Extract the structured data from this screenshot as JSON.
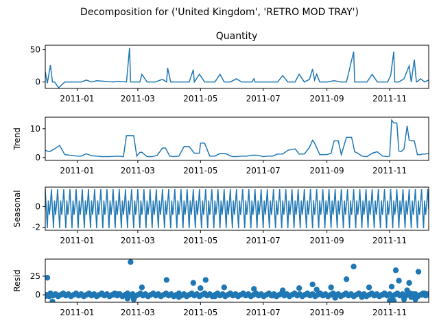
{
  "figure": {
    "suptitle": "Decomposition for ('United Kingdom', 'RETRO MOD TRAY')"
  },
  "chart_data": [
    {
      "type": "line",
      "id": "observed",
      "title": "Quantity",
      "ylabel": "",
      "color": "#1f77b4",
      "xlim": [
        "2011-11-28",
        "2011-12-09"
      ],
      "xlim_full": [
        "2010-12-01",
        "2011-12-09"
      ],
      "ylim": [
        -10,
        57
      ],
      "yticks": [
        0,
        50
      ],
      "xticks": [
        "2011-01",
        "2011-03",
        "2011-05",
        "2011-07",
        "2011-09",
        "2011-11"
      ],
      "x": [
        "2010-12-01",
        "2010-12-03",
        "2010-12-06",
        "2010-12-08",
        "2010-12-10",
        "2010-12-14",
        "2010-12-20",
        "2011-01-05",
        "2011-01-10",
        "2011-01-15",
        "2011-01-20",
        "2011-02-05",
        "2011-02-10",
        "2011-02-18",
        "2011-02-21",
        "2011-02-22",
        "2011-02-25",
        "2011-03-03",
        "2011-03-05",
        "2011-03-10",
        "2011-03-18",
        "2011-03-25",
        "2011-03-29",
        "2011-03-30",
        "2011-04-02",
        "2011-04-10",
        "2011-04-20",
        "2011-04-24",
        "2011-04-25",
        "2011-04-30",
        "2011-05-05",
        "2011-05-10",
        "2011-05-15",
        "2011-05-20",
        "2011-05-24",
        "2011-05-25",
        "2011-05-30",
        "2011-06-05",
        "2011-06-10",
        "2011-06-20",
        "2011-06-22",
        "2011-06-23",
        "2011-06-28",
        "2011-07-05",
        "2011-07-15",
        "2011-07-20",
        "2011-07-25",
        "2011-08-01",
        "2011-08-05",
        "2011-08-10",
        "2011-08-15",
        "2011-08-18",
        "2011-08-20",
        "2011-08-22",
        "2011-08-25",
        "2011-09-01",
        "2011-09-08",
        "2011-09-15",
        "2011-09-20",
        "2011-09-27",
        "2011-09-28",
        "2011-10-05",
        "2011-10-10",
        "2011-10-15",
        "2011-10-20",
        "2011-10-25",
        "2011-10-30",
        "2011-11-02",
        "2011-11-05",
        "2011-11-06",
        "2011-11-10",
        "2011-11-15",
        "2011-11-20",
        "2011-11-22",
        "2011-11-25",
        "2011-11-27",
        "2011-11-29",
        "2011-12-01",
        "2011-12-05",
        "2011-12-09"
      ],
      "y": [
        16,
        -2,
        26,
        0,
        0,
        -9,
        0,
        0,
        3,
        0,
        2,
        0,
        1,
        0,
        53,
        0,
        0,
        0,
        12,
        0,
        0,
        4,
        0,
        22,
        0,
        0,
        0,
        19,
        0,
        12,
        0,
        0,
        0,
        12,
        0,
        0,
        0,
        5,
        0,
        0,
        5,
        0,
        0,
        0,
        0,
        10,
        0,
        0,
        12,
        0,
        4,
        20,
        3,
        12,
        0,
        0,
        2,
        0,
        0,
        47,
        0,
        0,
        0,
        12,
        0,
        0,
        0,
        10,
        47,
        0,
        0,
        5,
        25,
        0,
        35,
        0,
        2,
        5,
        0,
        3
      ]
    },
    {
      "type": "line",
      "id": "trend",
      "title": "",
      "ylabel": "Trend",
      "color": "#1f77b4",
      "ylim": [
        -1,
        14
      ],
      "yticks": [
        0,
        10
      ],
      "xticks": [
        "2011-01",
        "2011-03",
        "2011-05",
        "2011-07",
        "2011-09",
        "2011-11"
      ],
      "x": [
        "2010-12-01",
        "2010-12-05",
        "2010-12-10",
        "2010-12-15",
        "2010-12-20",
        "2010-12-25",
        "2011-01-01",
        "2011-01-05",
        "2011-01-10",
        "2011-01-15",
        "2011-01-20",
        "2011-01-25",
        "2011-02-01",
        "2011-02-05",
        "2011-02-10",
        "2011-02-15",
        "2011-02-18",
        "2011-02-20",
        "2011-02-25",
        "2011-02-28",
        "2011-03-03",
        "2011-03-05",
        "2011-03-10",
        "2011-03-15",
        "2011-03-20",
        "2011-03-25",
        "2011-03-28",
        "2011-04-01",
        "2011-04-05",
        "2011-04-10",
        "2011-04-15",
        "2011-04-20",
        "2011-04-25",
        "2011-04-30",
        "2011-05-01",
        "2011-05-05",
        "2011-05-10",
        "2011-05-15",
        "2011-05-20",
        "2011-05-25",
        "2011-06-01",
        "2011-06-05",
        "2011-06-10",
        "2011-06-15",
        "2011-06-20",
        "2011-06-25",
        "2011-07-01",
        "2011-07-05",
        "2011-07-10",
        "2011-07-15",
        "2011-07-20",
        "2011-07-25",
        "2011-08-01",
        "2011-08-05",
        "2011-08-10",
        "2011-08-15",
        "2011-08-18",
        "2011-08-20",
        "2011-08-25",
        "2011-09-01",
        "2011-09-05",
        "2011-09-08",
        "2011-09-12",
        "2011-09-15",
        "2011-09-20",
        "2011-09-25",
        "2011-09-28",
        "2011-10-01",
        "2011-10-05",
        "2011-10-10",
        "2011-10-15",
        "2011-10-20",
        "2011-10-25",
        "2011-10-30",
        "2011-11-01",
        "2011-11-03",
        "2011-11-05",
        "2011-11-08",
        "2011-11-10",
        "2011-11-12",
        "2011-11-15",
        "2011-11-18",
        "2011-11-20",
        "2011-11-22",
        "2011-11-25",
        "2011-11-28",
        "2011-12-01",
        "2011-12-03",
        "2011-12-06",
        "2011-12-09"
      ],
      "y": [
        2.5,
        2.0,
        3.0,
        4.2,
        1.0,
        0.8,
        0.5,
        0.5,
        1.3,
        0.6,
        0.5,
        0.3,
        0.3,
        0.4,
        0.5,
        0.3,
        7.6,
        7.6,
        7.6,
        0.5,
        1.8,
        1.8,
        0.3,
        0.3,
        0.8,
        3.3,
        3.3,
        0.5,
        0.3,
        0.5,
        3.8,
        3.8,
        1.5,
        1.5,
        5.0,
        5.0,
        0.5,
        0.5,
        1.4,
        1.4,
        0.3,
        0.3,
        0.5,
        0.5,
        0.8,
        0.8,
        0.3,
        0.5,
        0.5,
        1.2,
        1.2,
        2.5,
        3.0,
        1.2,
        1.2,
        3.5,
        6.0,
        5.0,
        1.0,
        1.0,
        1.5,
        5.8,
        5.8,
        1.0,
        7.0,
        7.0,
        2.0,
        1.5,
        0.5,
        0.3,
        1.5,
        2.0,
        0.5,
        0.3,
        0.5,
        13.0,
        12.0,
        12.0,
        2.2,
        2.0,
        3.0,
        11.0,
        6.0,
        5.8,
        5.8,
        1.0,
        1.0,
        1.2,
        1.2,
        1.5
      ]
    },
    {
      "type": "line",
      "id": "seasonal",
      "title": "",
      "ylabel": "Seasonal",
      "color": "#1f77b4",
      "ylim": [
        -2.3,
        1.9
      ],
      "yticks": [
        -2,
        0
      ],
      "xticks": [
        "2011-01",
        "2011-03",
        "2011-05",
        "2011-07",
        "2011-09",
        "2011-11"
      ],
      "period_pattern": [
        1.7,
        -0.3,
        -2.1,
        0.6,
        -0.8,
        0.2
      ],
      "start": "2010-12-01",
      "end": "2011-12-09"
    },
    {
      "type": "scatter",
      "id": "resid",
      "title": "",
      "ylabel": "Resid",
      "color": "#1f77b4",
      "ylim": [
        -10,
        48
      ],
      "yticks": [
        0,
        25
      ],
      "xticks": [
        "2011-01",
        "2011-03",
        "2011-05",
        "2011-07",
        "2011-09",
        "2011-11"
      ],
      "x": [
        "2010-12-01",
        "2010-12-03",
        "2010-12-05",
        "2010-12-08",
        "2010-12-12",
        "2010-12-18",
        "2011-01-05",
        "2011-01-15",
        "2011-02-05",
        "2011-02-10",
        "2011-02-19",
        "2011-02-22",
        "2011-02-25",
        "2011-03-05",
        "2011-03-20",
        "2011-03-29",
        "2011-04-10",
        "2011-04-24",
        "2011-05-01",
        "2011-05-06",
        "2011-05-15",
        "2011-05-24",
        "2011-06-05",
        "2011-06-22",
        "2011-07-10",
        "2011-07-20",
        "2011-08-05",
        "2011-08-15",
        "2011-08-18",
        "2011-08-22",
        "2011-09-05",
        "2011-09-09",
        "2011-09-20",
        "2011-09-27",
        "2011-10-05",
        "2011-10-12",
        "2011-10-25",
        "2011-11-01",
        "2011-11-03",
        "2011-11-05",
        "2011-11-07",
        "2011-11-10",
        "2011-11-15",
        "2011-11-18",
        "2011-11-20",
        "2011-11-22",
        "2011-11-24",
        "2011-11-26",
        "2011-11-29",
        "2011-12-02",
        "2011-12-05",
        "2011-12-08"
      ],
      "y": [
        0,
        23,
        -2,
        -9,
        0,
        1,
        0,
        0,
        0,
        1,
        -5,
        44,
        -6,
        10,
        0,
        20,
        -3,
        16,
        9,
        20,
        -2,
        10,
        0,
        8,
        -1,
        6,
        9,
        0,
        14,
        7,
        10,
        -4,
        21,
        38,
        -3,
        10,
        0,
        -8,
        11,
        -8,
        33,
        19,
        -6,
        6,
        16,
        -3,
        1,
        -6,
        31,
        0,
        2,
        0
      ]
    }
  ]
}
